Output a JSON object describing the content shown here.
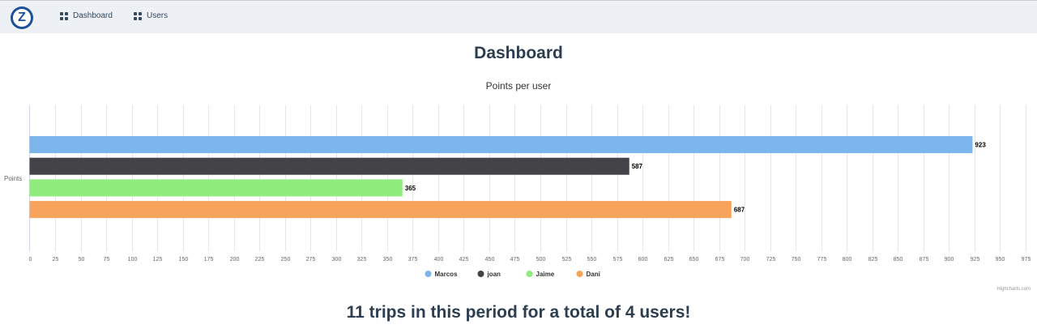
{
  "nav": {
    "logo_letter": "Z",
    "items": [
      {
        "label": "Dashboard",
        "icon": "dashboard-icon"
      },
      {
        "label": "Users",
        "icon": "users-icon"
      }
    ]
  },
  "page": {
    "title": "Dashboard",
    "summary": "11 trips in this period for a total of 4 users!"
  },
  "chart_data": {
    "type": "bar",
    "orientation": "horizontal",
    "title": "Points per user",
    "categories": [
      "Points"
    ],
    "series": [
      {
        "name": "Marcos",
        "values": [
          923
        ],
        "color": "#7cb5ec"
      },
      {
        "name": "joan",
        "values": [
          587
        ],
        "color": "#434348"
      },
      {
        "name": "Jaime",
        "values": [
          365
        ],
        "color": "#90ed7d"
      },
      {
        "name": "Dani",
        "values": [
          687
        ],
        "color": "#f7a35c"
      }
    ],
    "xlim": [
      0,
      975
    ],
    "tick_step": 25,
    "grid": true,
    "data_labels": true,
    "legend_position": "bottom",
    "credits": "Highcharts.com"
  }
}
